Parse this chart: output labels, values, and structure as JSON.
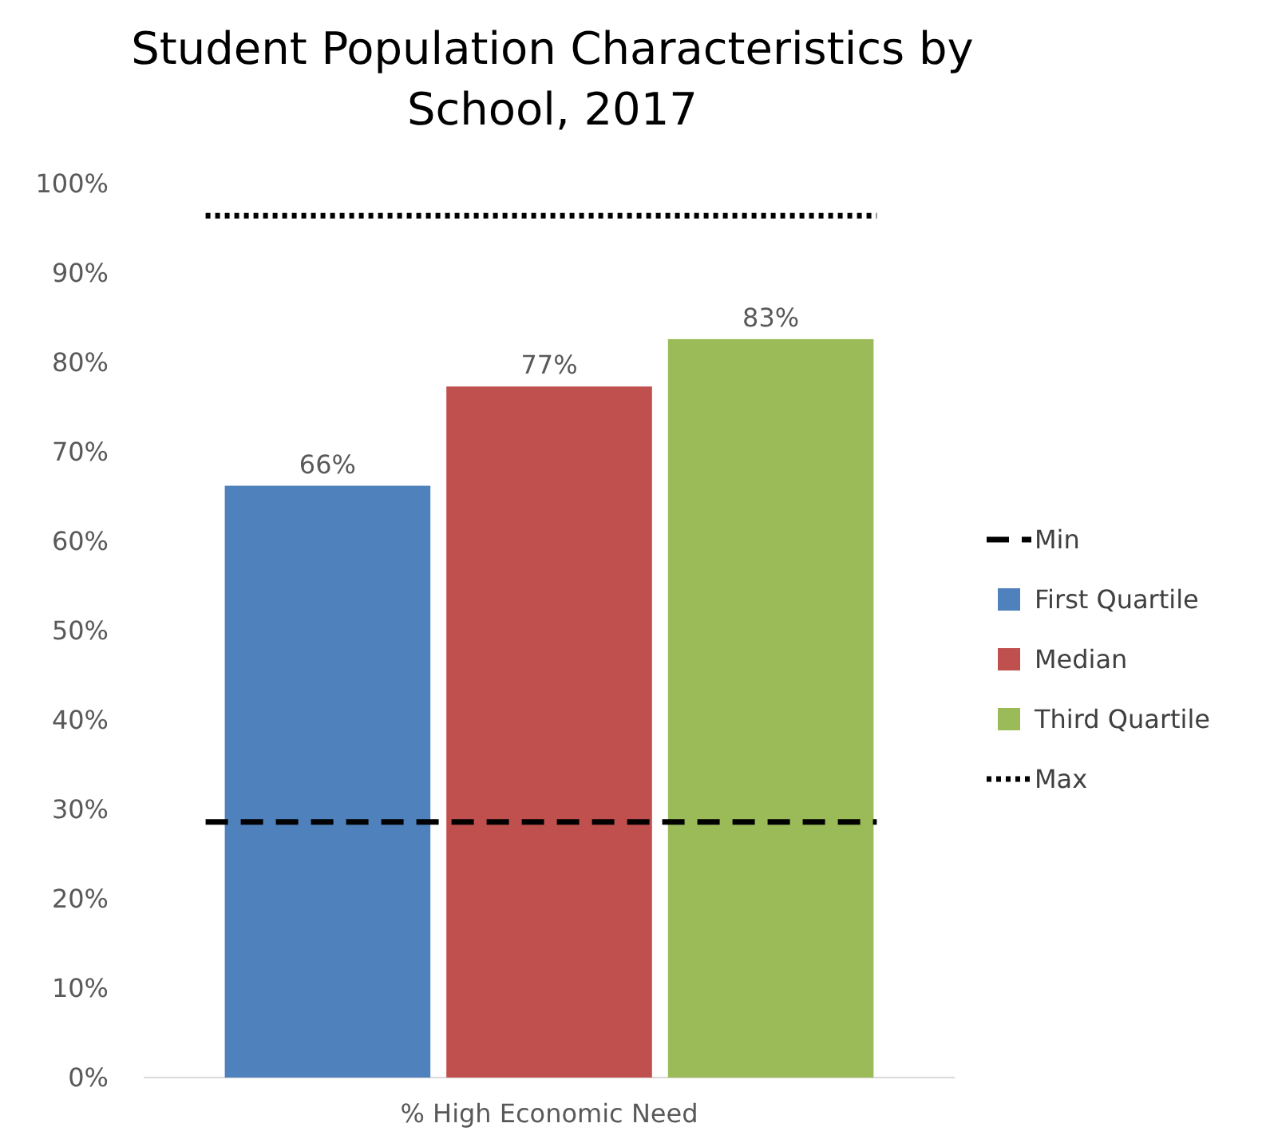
{
  "chart_data": {
    "type": "bar",
    "title": "Student Population Characteristics by School, 2017",
    "categories": [
      "% High Economic Need"
    ],
    "series": [
      {
        "name": "First Quartile",
        "color": "#4f81bd",
        "values": [
          66.2
        ],
        "value_labels": [
          "66%"
        ]
      },
      {
        "name": "Median",
        "color": "#c0504d",
        "values": [
          77.3
        ],
        "value_labels": [
          "77%"
        ]
      },
      {
        "name": "Third Quartile",
        "color": "#9bbb59",
        "values": [
          82.6
        ],
        "value_labels": [
          "83%"
        ]
      }
    ],
    "ref_lines": [
      {
        "axis": "y",
        "value": 28.6,
        "label": "Min",
        "color": "#000000",
        "line_style": "dashed"
      },
      {
        "axis": "y",
        "value": 96.4,
        "label": "Max",
        "color": "#000000",
        "line_style": "dotted"
      }
    ],
    "ylim": [
      0,
      100
    ],
    "yticks": [
      {
        "value": 0,
        "label": "0%"
      },
      {
        "value": 10,
        "label": "10%"
      },
      {
        "value": 20,
        "label": "20%"
      },
      {
        "value": 30,
        "label": "30%"
      },
      {
        "value": 40,
        "label": "40%"
      },
      {
        "value": 50,
        "label": "50%"
      },
      {
        "value": 60,
        "label": "60%"
      },
      {
        "value": 70,
        "label": "70%"
      },
      {
        "value": 80,
        "label": "80%"
      },
      {
        "value": 90,
        "label": "90%"
      },
      {
        "value": 100,
        "label": "100%"
      }
    ],
    "grid": false,
    "legend": "right"
  }
}
